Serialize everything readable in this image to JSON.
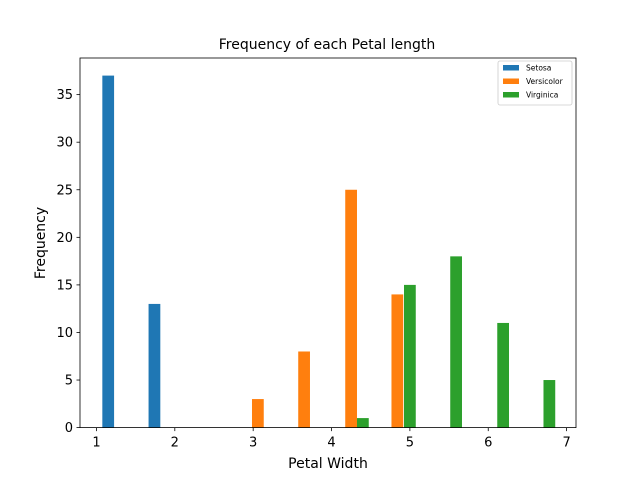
{
  "chart_data": {
    "type": "bar",
    "title": "Frequency of each Petal length",
    "xlabel": "Petal Width",
    "ylabel": "Frequency",
    "xlim": [
      0.79,
      7.12
    ],
    "ylim": [
      0,
      38.85
    ],
    "xticks": [
      1,
      2,
      3,
      4,
      5,
      6,
      7
    ],
    "yticks": [
      0,
      5,
      10,
      15,
      20,
      25,
      30,
      35
    ],
    "bar_width": 0.15,
    "grid": false,
    "legend_position": "top-right",
    "series": [
      {
        "name": "Setosa",
        "color": "#1f77b4",
        "x": [
          1.15,
          1.74
        ],
        "values": [
          37,
          13
        ]
      },
      {
        "name": "Versicolor",
        "color": "#ff7f0e",
        "x": [
          3.06,
          3.65,
          4.25,
          4.84
        ],
        "values": [
          3,
          8,
          25,
          14
        ]
      },
      {
        "name": "Virginica",
        "color": "#2ca02c",
        "x": [
          4.4,
          5.0,
          5.59,
          6.19,
          6.78
        ],
        "values": [
          1,
          15,
          18,
          11,
          5
        ]
      }
    ]
  }
}
